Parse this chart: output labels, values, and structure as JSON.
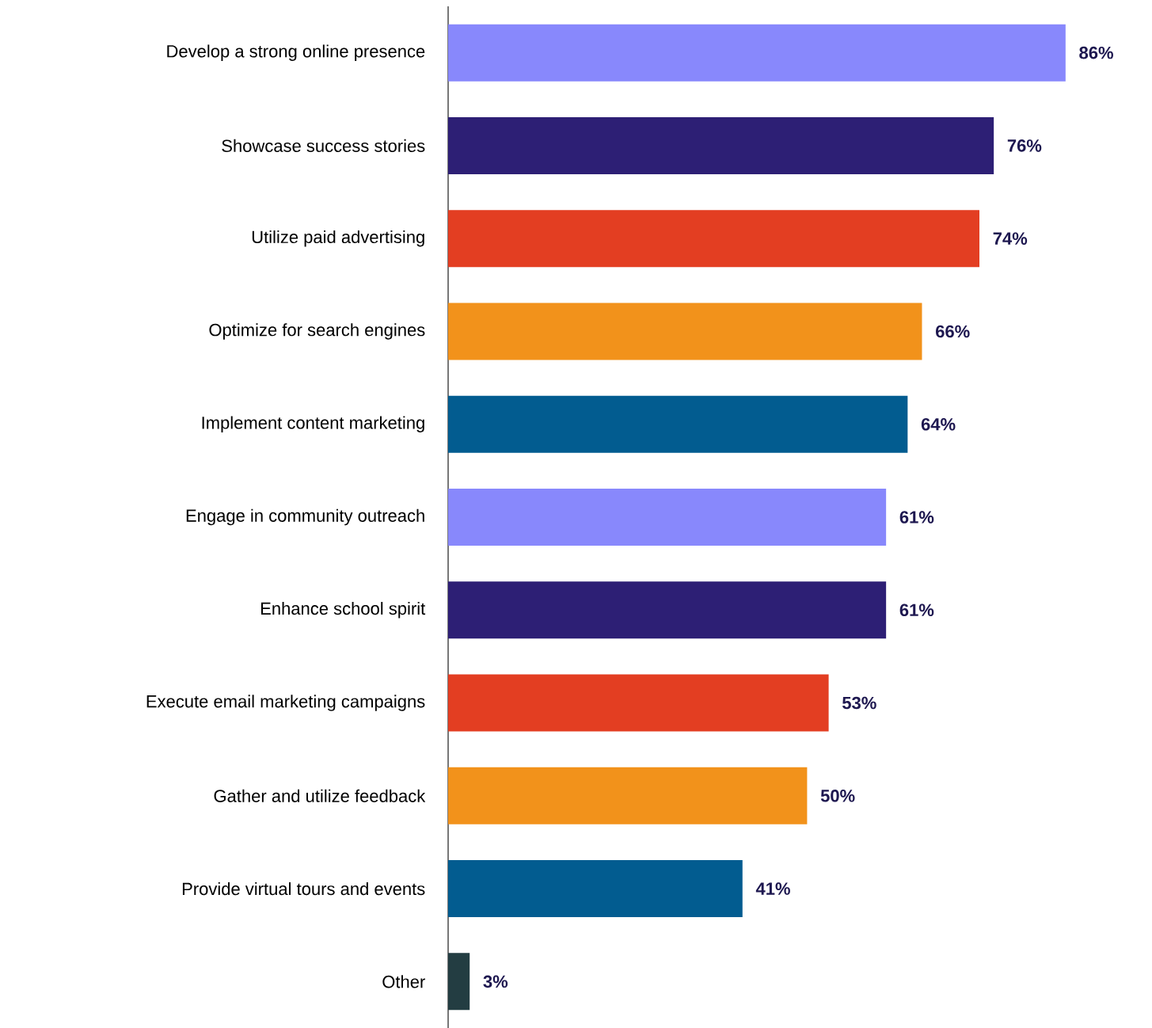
{
  "chart_data": {
    "type": "bar",
    "orientation": "horizontal",
    "categories": [
      "Develop a strong online presence",
      "Showcase success stories",
      "Utilize paid advertising",
      "Optimize for search engines",
      "Implement content marketing",
      "Engage in community outreach",
      "Enhance school spirit",
      "Execute email marketing campaigns",
      "Gather and utilize feedback",
      "Provide virtual tours and events",
      "Other"
    ],
    "values": [
      86,
      76,
      74,
      66,
      64,
      61,
      61,
      53,
      50,
      41,
      3
    ],
    "value_labels": [
      "86%",
      "76%",
      "74%",
      "66%",
      "64%",
      "61%",
      "61%",
      "53%",
      "50%",
      "41%",
      "3%"
    ],
    "colors": [
      "#8888fc",
      "#2d1f75",
      "#e33e22",
      "#f2921b",
      "#025c90",
      "#8888fc",
      "#2d1f75",
      "#e33e22",
      "#f2921b",
      "#025c90",
      "#233d42"
    ]
  }
}
